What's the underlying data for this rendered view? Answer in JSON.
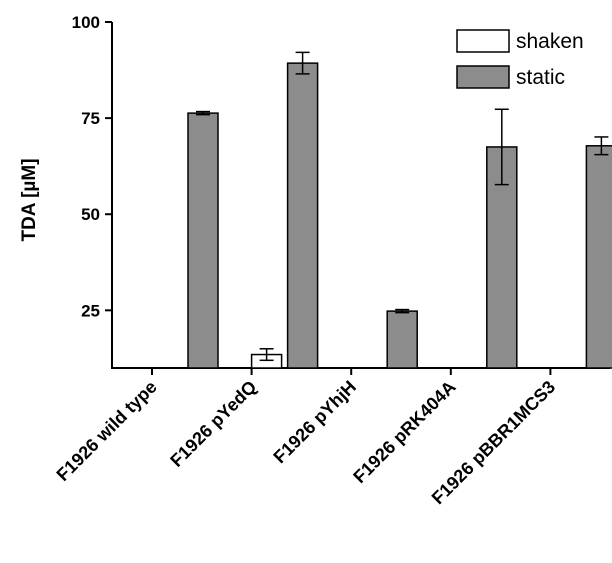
{
  "chart_data": {
    "type": "bar",
    "title": "",
    "ylabel": "TDA [µM]",
    "xlabel": "",
    "ylim": [
      0,
      100
    ],
    "y_axis_start": 10,
    "yticks": [
      25,
      50,
      75,
      100
    ],
    "categories": [
      "F1926 wild type",
      "F1926 pYedQ",
      "F1926 pYhjH",
      "F1926 pRK404A",
      "F1926 pBBR1MCS3"
    ],
    "series": [
      {
        "name": "shaken",
        "color": "#ffffff",
        "values": [
          null,
          13.5,
          null,
          null,
          null
        ],
        "errors": [
          null,
          1.5,
          null,
          null,
          null
        ]
      },
      {
        "name": "static",
        "color": "#8c8c8c",
        "values": [
          76.3,
          89.3,
          24.8,
          67.5,
          67.8
        ],
        "errors": [
          0.4,
          2.8,
          0.4,
          9.8,
          2.3
        ]
      }
    ],
    "legend": {
      "position": "top-right"
    },
    "grid": false
  }
}
